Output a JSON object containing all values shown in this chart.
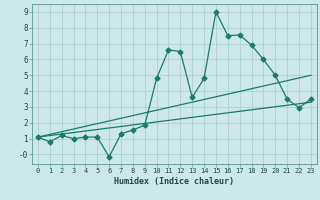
{
  "title": "",
  "xlabel": "Humidex (Indice chaleur)",
  "bg_color": "#cce8e8",
  "grid_color": "#aacccc",
  "line_color": "#1a7a6e",
  "xlim": [
    -0.5,
    23.5
  ],
  "ylim": [
    -0.6,
    9.5
  ],
  "xticks": [
    0,
    1,
    2,
    3,
    4,
    5,
    6,
    7,
    8,
    9,
    10,
    11,
    12,
    13,
    14,
    15,
    16,
    17,
    18,
    19,
    20,
    21,
    22,
    23
  ],
  "yticks": [
    0,
    1,
    2,
    3,
    4,
    5,
    6,
    7,
    8,
    9
  ],
  "ytick_labels": [
    "-0",
    "1",
    "2",
    "3",
    "4",
    "5",
    "6",
    "7",
    "8",
    "9"
  ],
  "main_x": [
    0,
    1,
    2,
    3,
    4,
    5,
    6,
    7,
    8,
    9,
    10,
    11,
    12,
    13,
    14,
    15,
    16,
    17,
    18,
    19,
    20,
    21,
    22,
    23
  ],
  "main_y": [
    1.1,
    0.8,
    1.2,
    1.0,
    1.1,
    1.1,
    -0.15,
    1.3,
    1.55,
    1.85,
    4.8,
    6.6,
    6.5,
    3.6,
    4.8,
    9.0,
    7.5,
    7.55,
    6.9,
    6.0,
    5.0,
    3.5,
    2.95,
    3.5
  ],
  "line2_x": [
    0,
    23
  ],
  "line2_y": [
    1.1,
    5.0
  ],
  "line3_x": [
    0,
    23
  ],
  "line3_y": [
    1.1,
    3.3
  ],
  "marker_size": 2.5,
  "linewidth": 0.9,
  "font_size_tick": 5,
  "font_size_label": 6
}
